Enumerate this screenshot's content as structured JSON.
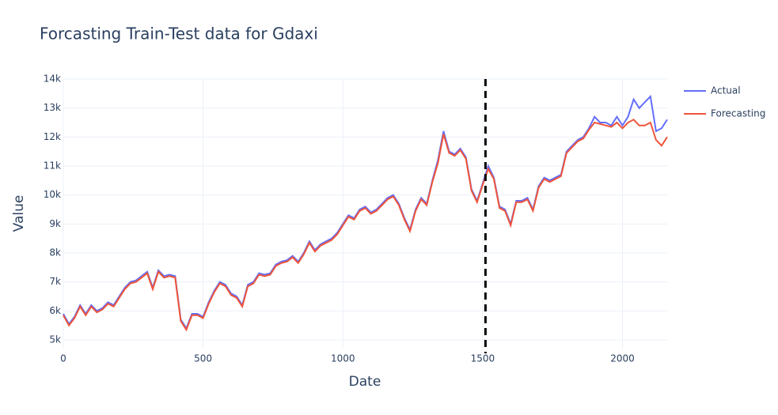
{
  "chart_data": {
    "type": "line",
    "title": "Forcasting Train-Test data for Gdaxi",
    "x_label": "Date",
    "y_label": "Value",
    "x": [
      0,
      20,
      40,
      60,
      80,
      100,
      120,
      140,
      160,
      180,
      200,
      220,
      240,
      260,
      280,
      300,
      320,
      340,
      360,
      380,
      400,
      420,
      440,
      460,
      480,
      500,
      520,
      540,
      560,
      580,
      600,
      620,
      640,
      660,
      680,
      700,
      720,
      740,
      760,
      780,
      800,
      820,
      840,
      860,
      880,
      900,
      920,
      940,
      960,
      980,
      1000,
      1020,
      1040,
      1060,
      1080,
      1100,
      1120,
      1140,
      1160,
      1180,
      1200,
      1220,
      1240,
      1260,
      1280,
      1300,
      1320,
      1340,
      1360,
      1380,
      1400,
      1420,
      1440,
      1460,
      1480,
      1500,
      1520,
      1540,
      1560,
      1580,
      1600,
      1620,
      1640,
      1660,
      1680,
      1700,
      1720,
      1740,
      1760,
      1780,
      1800,
      1820,
      1840,
      1860,
      1880,
      1900,
      1920,
      1940,
      1960,
      1980,
      2000,
      2020,
      2040,
      2060,
      2080,
      2100,
      2120,
      2140,
      2160
    ],
    "series": [
      {
        "name": "Actual",
        "color": "#636efa",
        "values": [
          5900,
          5550,
          5800,
          6200,
          5900,
          6200,
          6000,
          6100,
          6300,
          6200,
          6500,
          6800,
          7000,
          7050,
          7200,
          7350,
          6800,
          7400,
          7200,
          7250,
          7200,
          5700,
          5400,
          5900,
          5900,
          5800,
          6300,
          6700,
          7000,
          6900,
          6600,
          6500,
          6200,
          6900,
          7000,
          7300,
          7250,
          7300,
          7600,
          7700,
          7750,
          7900,
          7700,
          8000,
          8400,
          8100,
          8300,
          8400,
          8500,
          8700,
          9000,
          9300,
          9200,
          9500,
          9600,
          9400,
          9500,
          9700,
          9900,
          10000,
          9700,
          9200,
          8800,
          9500,
          9900,
          9700,
          10500,
          11200,
          12200,
          11500,
          11400,
          11600,
          11300,
          10200,
          9800,
          10400,
          11000,
          10600,
          9600,
          9500,
          9000,
          9800,
          9800,
          9900,
          9500,
          10300,
          10600,
          10500,
          10600,
          10700,
          11500,
          11700,
          11900,
          12000,
          12300,
          12700,
          12500,
          12500,
          12400,
          12700,
          12400,
          12700,
          13300,
          13000,
          13200,
          13400,
          12200,
          12300,
          12600
        ]
      },
      {
        "name": "Forecasting",
        "color": "#ef553b",
        "values": [
          5850,
          5500,
          5750,
          6150,
          5850,
          6150,
          5950,
          6050,
          6250,
          6150,
          6450,
          6750,
          6950,
          7000,
          7150,
          7300,
          6750,
          7350,
          7150,
          7200,
          7150,
          5650,
          5350,
          5850,
          5850,
          5750,
          6250,
          6650,
          6950,
          6850,
          6550,
          6450,
          6150,
          6850,
          6950,
          7250,
          7200,
          7250,
          7550,
          7650,
          7700,
          7850,
          7650,
          7950,
          8350,
          8050,
          8250,
          8350,
          8450,
          8650,
          8950,
          9250,
          9150,
          9450,
          9550,
          9350,
          9450,
          9650,
          9850,
          9950,
          9650,
          9150,
          8750,
          9450,
          9850,
          9650,
          10450,
          11100,
          12100,
          11450,
          11350,
          11550,
          11250,
          10150,
          9750,
          10350,
          10900,
          10550,
          9550,
          9450,
          8950,
          9750,
          9750,
          9850,
          9450,
          10250,
          10550,
          10450,
          10550,
          10650,
          11450,
          11650,
          11850,
          11950,
          12250,
          12500,
          12450,
          12400,
          12350,
          12500,
          12300,
          12500,
          12600,
          12400,
          12400,
          12500,
          11900,
          11700,
          12000
        ]
      }
    ],
    "xlim": [
      0,
      2160
    ],
    "ylim": [
      4700,
      14000
    ],
    "xticks": [
      0,
      500,
      1000,
      1500,
      2000
    ],
    "yticks": [
      {
        "value": 5000,
        "label": "5k"
      },
      {
        "value": 6000,
        "label": "6k"
      },
      {
        "value": 7000,
        "label": "7k"
      },
      {
        "value": 8000,
        "label": "8k"
      },
      {
        "value": 9000,
        "label": "9k"
      },
      {
        "value": 10000,
        "label": "10k"
      },
      {
        "value": 11000,
        "label": "11k"
      },
      {
        "value": 12000,
        "label": "12k"
      },
      {
        "value": 13000,
        "label": "13k"
      },
      {
        "value": 14000,
        "label": "14k"
      }
    ],
    "vline_x": 1510,
    "grid": true,
    "legend": "right"
  }
}
